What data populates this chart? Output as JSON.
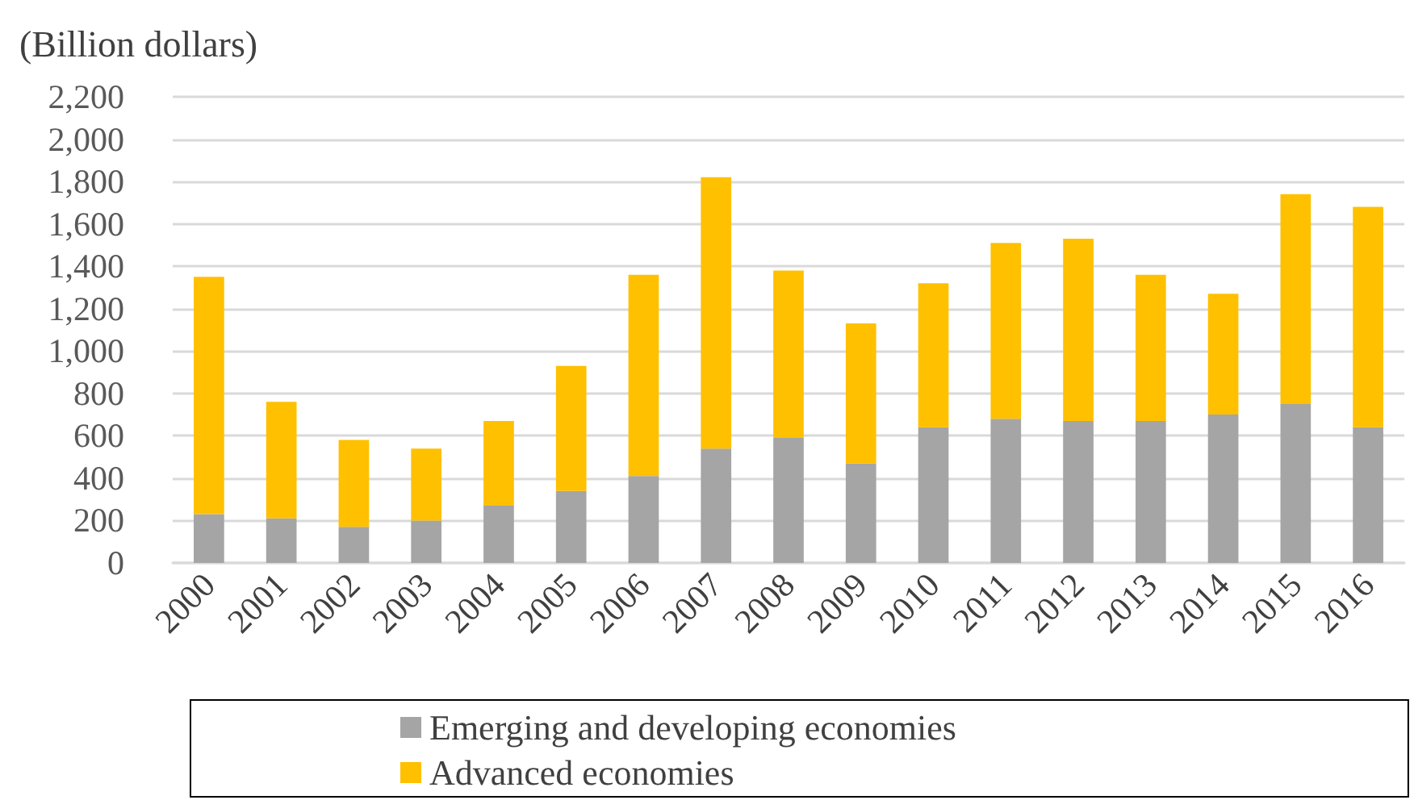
{
  "chart_data": {
    "type": "bar",
    "ylabel": "(Billion dollars)",
    "categories": [
      "2000",
      "2001",
      "2002",
      "2003",
      "2004",
      "2005",
      "2006",
      "2007",
      "2008",
      "2009",
      "2010",
      "2011",
      "2012",
      "2013",
      "2014",
      "2015",
      "2016"
    ],
    "series": [
      {
        "name": "Emerging and developing economies",
        "color": "#a5a5a5",
        "values": [
          230,
          210,
          170,
          200,
          270,
          340,
          410,
          540,
          590,
          470,
          640,
          680,
          670,
          670,
          700,
          750,
          640
        ]
      },
      {
        "name": "Advanced economies",
        "color": "#ffc000",
        "values": [
          1120,
          550,
          410,
          340,
          400,
          590,
          950,
          1280,
          790,
          660,
          680,
          830,
          860,
          690,
          570,
          990,
          1040
        ]
      }
    ],
    "stacked": true,
    "ylim": [
      0,
      2200
    ],
    "yticks": [
      0,
      200,
      400,
      600,
      800,
      {
        "value": 1000,
        "label": "1,000"
      },
      {
        "value": 1200,
        "label": "1,200"
      },
      {
        "value": 1400,
        "label": "1,400"
      },
      {
        "value": 1600,
        "label": "1,600"
      },
      {
        "value": 1800,
        "label": "1,800"
      },
      {
        "value": 2000,
        "label": "2,000"
      },
      {
        "value": 2200,
        "label": "2,200"
      }
    ],
    "grid": "y",
    "legend": "bottom"
  }
}
